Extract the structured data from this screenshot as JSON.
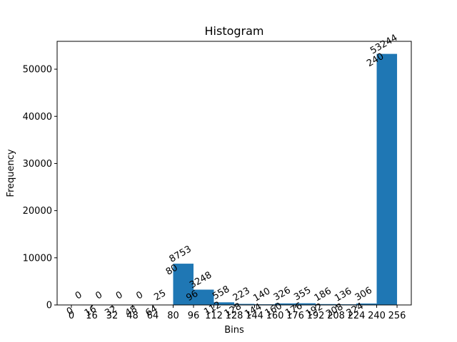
{
  "chart_data": {
    "type": "bar",
    "title": "Histogram",
    "xlabel": "Bins",
    "ylabel": "Frequency",
    "bar_color": "#1f77b4",
    "bin_edges": [
      0,
      16,
      32,
      48,
      64,
      80,
      96,
      112,
      128,
      144,
      160,
      176,
      192,
      208,
      224,
      240,
      256
    ],
    "counts": [
      0,
      0,
      0,
      0,
      25,
      8753,
      3248,
      558,
      223,
      140,
      326,
      355,
      186,
      136,
      306,
      53244
    ],
    "xticks": [
      0,
      16,
      32,
      48,
      64,
      80,
      96,
      112,
      128,
      144,
      160,
      176,
      192,
      208,
      224,
      240,
      256
    ],
    "yticks": [
      0,
      10000,
      20000,
      30000,
      40000,
      50000
    ],
    "xlim": [
      -11.2,
      267.2
    ],
    "ylim": [
      0,
      55906
    ],
    "grid": false,
    "legend": "none"
  }
}
